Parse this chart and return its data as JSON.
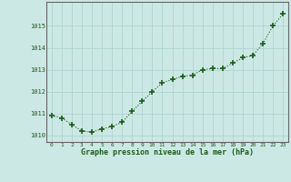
{
  "x": [
    0,
    1,
    2,
    3,
    4,
    5,
    6,
    7,
    8,
    9,
    10,
    11,
    12,
    13,
    14,
    15,
    16,
    17,
    18,
    19,
    20,
    21,
    22,
    23
  ],
  "y": [
    1010.9,
    1010.8,
    1010.5,
    1010.2,
    1010.15,
    1010.3,
    1010.4,
    1010.6,
    1011.1,
    1011.55,
    1012.0,
    1012.4,
    1012.55,
    1012.7,
    1012.75,
    1013.0,
    1013.05,
    1013.05,
    1013.3,
    1013.55,
    1013.65,
    1014.2,
    1015.0,
    1015.55
  ],
  "line_color": "#1e5c1e",
  "marker_color": "#1e5c1e",
  "bg_color": "#cce8e4",
  "grid_color": "#b0d4cf",
  "border_color": "#666666",
  "xlabel": "Graphe pression niveau de la mer (hPa)",
  "xlabel_color": "#1e5c1e",
  "tick_color": "#1e5c1e",
  "ylim": [
    1009.7,
    1016.1
  ],
  "yticks": [
    1010,
    1011,
    1012,
    1013,
    1014,
    1015
  ],
  "xticks": [
    0,
    1,
    2,
    3,
    4,
    5,
    6,
    7,
    8,
    9,
    10,
    11,
    12,
    13,
    14,
    15,
    16,
    17,
    18,
    19,
    20,
    21,
    22,
    23
  ]
}
